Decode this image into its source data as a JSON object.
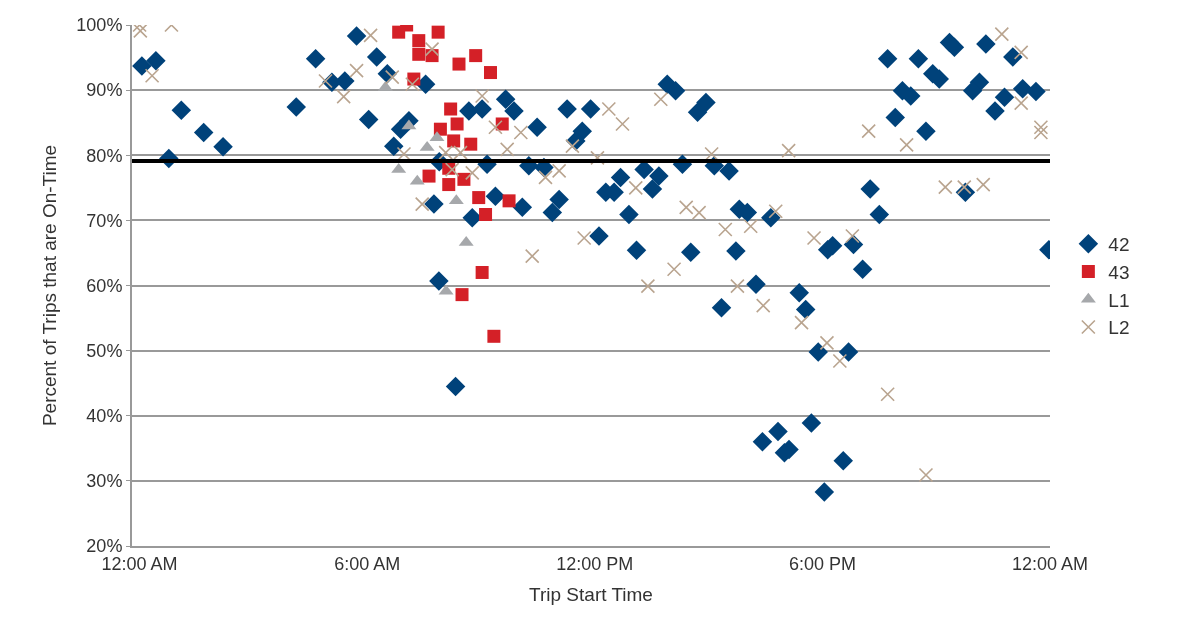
{
  "chart_data": {
    "type": "scatter",
    "xlabel": "Trip Start Time",
    "ylabel": "Percent of Trips that are On-Time",
    "xlim": [
      -0.2,
      24
    ],
    "xticks": [
      {
        "value": 0,
        "label": "12:00 AM"
      },
      {
        "value": 6,
        "label": "6:00 AM"
      },
      {
        "value": 12,
        "label": "12:00 PM"
      },
      {
        "value": 18,
        "label": "6:00 PM"
      },
      {
        "value": 24,
        "label": "12:00 AM"
      }
    ],
    "ylim": [
      20,
      100
    ],
    "yticks": [
      {
        "value": 20,
        "label": "20%"
      },
      {
        "value": 30,
        "label": "30%"
      },
      {
        "value": 40,
        "label": "40%"
      },
      {
        "value": 50,
        "label": "50%"
      },
      {
        "value": 60,
        "label": "60%"
      },
      {
        "value": 70,
        "label": "70%"
      },
      {
        "value": 80,
        "label": "80%"
      },
      {
        "value": 90,
        "label": "90%"
      },
      {
        "value": 100,
        "label": "100%"
      }
    ],
    "grid": "y",
    "legend": "right",
    "ref_lines": [
      {
        "axis": "y",
        "value": 79.1,
        "color": "#000000"
      }
    ],
    "series": [
      {
        "name": "42",
        "color": "#00427a",
        "marker": "diamond",
        "x": [
          0.06,
          0.43,
          1.1,
          1.69,
          2.2,
          0.77,
          4.13,
          4.64,
          5.07,
          5.41,
          5.72,
          6.04,
          6.25,
          6.53,
          7.54,
          7.1,
          6.88,
          6.7,
          8.68,
          9.03,
          9.65,
          9.87,
          10.48,
          11.27,
          11.89,
          11.67,
          11.5,
          9.16,
          10.26,
          10.66,
          7.9,
          7.76,
          9.38,
          10.09,
          10.88,
          11.06,
          8.77,
          12.11,
          7.89,
          8.33,
          13.91,
          14.13,
          14.93,
          14.71,
          12.29,
          12.51,
          12.68,
          13.3,
          13.69,
          13.52,
          14.31,
          15.15,
          15.54,
          12.9,
          15.81,
          16.02,
          16.64,
          13.1,
          14.53,
          15.72,
          18.14,
          15.34,
          16.25,
          17.39,
          17.56,
          17.89,
          16.42,
          16.83,
          17.12,
          17.0,
          17.71,
          18.05,
          19.72,
          20.53,
          21.35,
          21.48,
          22.31,
          23.02,
          20.91,
          21.08,
          20.11,
          20.33,
          22.14,
          21.96,
          22.8,
          22.55,
          23.28,
          23.63,
          19.92,
          20.73,
          19.26,
          19.5,
          21.77,
          18.27,
          18.82,
          19.06,
          23.97,
          18.69,
          18.55
        ],
        "values": [
          93.7,
          94.5,
          86.9,
          83.5,
          81.3,
          79.5,
          87.4,
          94.8,
          91.2,
          91.4,
          98.3,
          85.5,
          95.1,
          92.5,
          90.9,
          85.3,
          84.0,
          81.4,
          86.8,
          87.1,
          88.6,
          86.8,
          84.3,
          87.1,
          87.1,
          83.7,
          82.2,
          78.6,
          78.4,
          78.1,
          79.0,
          72.5,
          73.7,
          72.0,
          71.2,
          73.2,
          70.4,
          67.6,
          60.7,
          44.5,
          90.9,
          89.9,
          88.1,
          86.6,
          74.3,
          74.3,
          76.6,
          77.8,
          76.8,
          74.8,
          78.6,
          78.4,
          77.6,
          70.9,
          71.7,
          71.2,
          70.4,
          65.4,
          65.1,
          65.3,
          65.5,
          56.6,
          60.2,
          58.9,
          56.3,
          49.8,
          36.0,
          37.6,
          34.8,
          34.3,
          38.9,
          28.3,
          94.8,
          94.8,
          97.3,
          96.6,
          97.1,
          95.1,
          92.5,
          91.7,
          89.9,
          89.1,
          91.2,
          89.9,
          88.9,
          86.8,
          90.2,
          89.8,
          85.8,
          83.7,
          74.8,
          70.9,
          74.3,
          66.1,
          66.3,
          62.5,
          65.5,
          49.8,
          33.1
        ]
      },
      {
        "name": "43",
        "color": "#d42027",
        "marker": "square",
        "x": [
          7.04,
          6.83,
          7.87,
          7.36,
          7.71,
          7.36,
          8.42,
          8.86,
          9.25,
          7.23,
          8.2,
          7.93,
          8.37,
          9.56,
          8.73,
          8.28,
          7.63,
          8.15,
          8.55,
          8.94,
          9.74,
          9.12,
          9.03,
          8.5,
          9.34,
          8.15
        ],
        "values": [
          100,
          98.9,
          98.9,
          97.6,
          95.3,
          95.5,
          94.0,
          95.3,
          92.7,
          91.7,
          87.1,
          84.0,
          84.8,
          84.8,
          81.7,
          82.2,
          76.8,
          75.5,
          76.3,
          73.5,
          73.0,
          70.9,
          62.0,
          58.6,
          52.2,
          78.0
        ]
      },
      {
        "name": "L1",
        "color": "#a6a8ab",
        "marker": "triangle",
        "x": [
          6.48,
          7.1,
          7.84,
          7.58,
          6.83,
          7.32,
          8.35,
          8.61,
          8.08
        ],
        "values": [
          90.4,
          84.5,
          82.7,
          81.2,
          77.8,
          76.0,
          73.0,
          66.6,
          59.1
        ]
      },
      {
        "name": "L2",
        "color": "#b9a48f",
        "marker": "cross",
        "x": [
          0,
          0.02,
          0.84,
          0.33,
          4.9,
          5.38,
          5.72,
          6.09,
          6.66,
          7.19,
          7.71,
          9.03,
          12.37,
          9.38,
          10.05,
          6.97,
          8.07,
          8.46,
          9.69,
          11.41,
          12.07,
          8.24,
          8.77,
          11.06,
          10.7,
          7.45,
          11.72,
          10.35,
          12.73,
          13.74,
          13.08,
          15.08,
          17.11,
          14.41,
          14.75,
          15.44,
          16.11,
          16.77,
          17.78,
          13.4,
          14.09,
          15.76,
          16.44,
          17.45,
          18.12,
          22.73,
          23.24,
          23.24,
          23.76,
          23.76,
          19.22,
          20.22,
          21.24,
          21.74,
          22.24,
          18.79,
          18.46,
          19.72,
          20.73
        ],
        "values": [
          100,
          99.1,
          100,
          92.2,
          91.4,
          89.0,
          93.0,
          98.4,
          92.0,
          90.9,
          96.3,
          89.1,
          87.1,
          84.3,
          83.5,
          80.2,
          80.4,
          80.4,
          80.9,
          81.4,
          79.6,
          77.8,
          77.3,
          77.6,
          76.6,
          72.5,
          67.3,
          64.5,
          84.8,
          88.6,
          75.0,
          80.2,
          80.7,
          72.0,
          71.2,
          68.6,
          69.1,
          71.4,
          67.3,
          59.9,
          62.5,
          59.9,
          56.9,
          54.3,
          51.2,
          98.6,
          95.8,
          88.0,
          84.3,
          83.5,
          83.7,
          81.6,
          75.1,
          75.1,
          75.5,
          67.6,
          48.4,
          43.3,
          30.9
        ]
      }
    ]
  }
}
